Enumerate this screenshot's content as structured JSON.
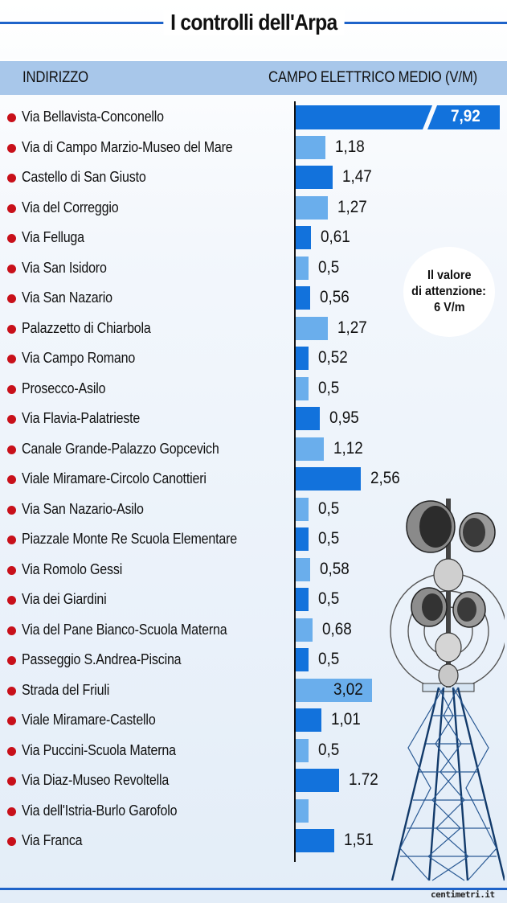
{
  "title": "I controlli dell'Arpa",
  "header": {
    "left_label": "INDIRIZZO",
    "right_label": "CAMPO ELETTRICO MEDIO (V/M)"
  },
  "callout": {
    "lines": [
      "Il valore",
      "di attenzione:",
      "6 V/m"
    ]
  },
  "watermark": "centimetri.it",
  "colors": {
    "dark_bar": "#1272dc",
    "light_bar": "#6aaeec",
    "bullet": "#c8101a",
    "header_band": "#a8c7ea",
    "title_rule": "#1e63c9"
  },
  "chart_data": {
    "type": "bar",
    "orientation": "horizontal",
    "title": "I controlli dell'Arpa",
    "xlabel": "CAMPO ELETTRICO MEDIO (V/M)",
    "ylabel": "INDIRIZZO",
    "categories": [
      "Via Bellavista-Conconello",
      "Via di Campo Marzio-Museo del Mare",
      "Castello di San Giusto",
      "Via del Correggio",
      "Via Felluga",
      "Via San Isidoro",
      "Via San Nazario",
      "Palazzetto di Chiarbola",
      "Via Campo Romano",
      "Prosecco-Asilo",
      "Via Flavia-Palatrieste",
      "Canale Grande-Palazzo Gopcevich",
      "Viale Miramare-Circolo Canottieri",
      "Via San Nazario-Asilo",
      "Piazzale Monte Re Scuola Elementare",
      "Via Romolo Gessi",
      "Via dei Giardini",
      "Via del Pane Bianco-Scuola Materna",
      "Passeggio S.Andrea-Piscina",
      "Strada del Friuli",
      "Viale Miramare-Castello",
      "Via Puccini-Scuola Materna",
      "Via Diaz-Museo Revoltella",
      "Via dell'Istria-Burlo Garofolo",
      "Via Franca"
    ],
    "values": [
      7.92,
      1.18,
      1.47,
      1.27,
      0.61,
      0.5,
      0.56,
      1.27,
      0.52,
      0.5,
      0.95,
      1.12,
      2.56,
      0.5,
      0.5,
      0.58,
      0.5,
      0.68,
      0.5,
      3.02,
      1.01,
      0.5,
      1.72,
      0.5,
      1.51
    ],
    "value_labels": [
      "7,92",
      "1,18",
      "1,47",
      "1,27",
      "0,61",
      "0,5",
      "0,56",
      "1,27",
      "0,52",
      "0,5",
      "0,95",
      "1,12",
      "2,56",
      "0,5",
      "0,5",
      "0,58",
      "0,5",
      "0,68",
      "0,5",
      "3,02",
      "1,01",
      "0,5",
      "1.72",
      "",
      "1,51"
    ],
    "bar_shade": [
      "dark",
      "light",
      "dark",
      "light",
      "dark",
      "light",
      "dark",
      "light",
      "dark",
      "light",
      "dark",
      "light",
      "dark",
      "light",
      "dark",
      "light",
      "dark",
      "light",
      "dark",
      "light",
      "dark",
      "light",
      "dark",
      "light",
      "dark"
    ],
    "broken_axis_first_bar": true,
    "attention_threshold": 6,
    "grid": false,
    "legend": "none"
  }
}
